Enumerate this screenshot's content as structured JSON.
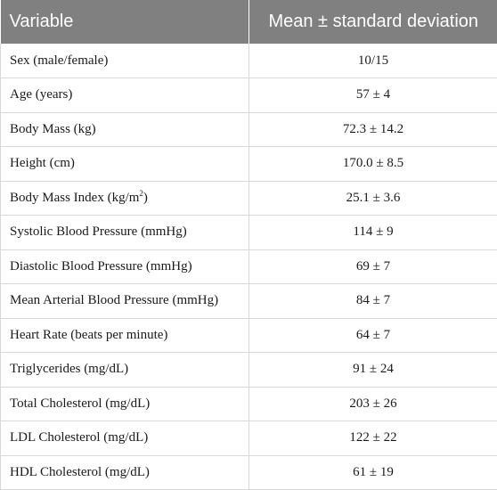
{
  "headers": {
    "variable": "Variable",
    "value": "Mean ± standard deviation"
  },
  "rows": [
    {
      "label": "Sex (male/female)",
      "value": "10/15"
    },
    {
      "label": "Age (years)",
      "value": "57 ± 4"
    },
    {
      "label": "Body Mass (kg)",
      "value": "72.3 ± 14.2"
    },
    {
      "label": "Height (cm)",
      "value": "170.0 ± 8.5"
    },
    {
      "label": "Body Mass Index (kg/m",
      "label_sup": "2",
      "label_after": ")",
      "value": "25.1 ± 3.6"
    },
    {
      "label": "Systolic Blood Pressure (mmHg)",
      "value": "114 ± 9"
    },
    {
      "label": "Diastolic Blood Pressure (mmHg)",
      "value": "69 ± 7"
    },
    {
      "label": "Mean Arterial Blood Pressure (mmHg)",
      "value": "84 ± 7"
    },
    {
      "label": "Heart Rate (beats per minute)",
      "value": "64 ± 7"
    },
    {
      "label": "Triglycerides (mg/dL)",
      "value": "91 ± 24"
    },
    {
      "label": "Total Cholesterol (mg/dL)",
      "value": "203 ± 26"
    },
    {
      "label": "LDL Cholesterol (mg/dL)",
      "value": "122 ± 22"
    },
    {
      "label": "HDL Cholesterol (mg/dL)",
      "value": "61 ± 19"
    }
  ]
}
